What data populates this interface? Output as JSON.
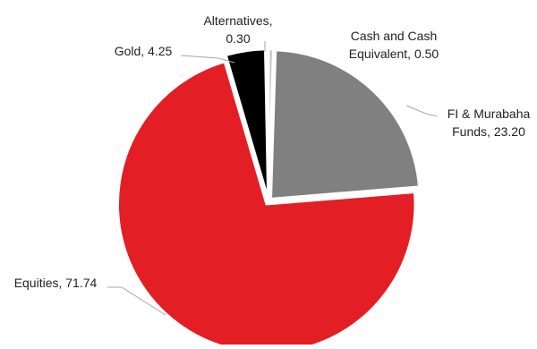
{
  "chart_data": {
    "type": "pie",
    "title": "",
    "slices": [
      {
        "label_lines": [
          "Cash and Cash",
          "Equivalent, 0.50"
        ],
        "name": "Cash and Cash Equivalent",
        "value": 0.5,
        "color": "#c8c8c8"
      },
      {
        "label_lines": [
          "FI & Murabaha",
          "Funds, 23.20"
        ],
        "name": "FI & Murabaha Funds",
        "value": 23.2,
        "color": "#808080"
      },
      {
        "label_lines": [
          "Equities, 71.74"
        ],
        "name": "Equities",
        "value": 71.74,
        "color": "#e31e24"
      },
      {
        "label_lines": [
          "Gold, 4.25"
        ],
        "name": "Gold",
        "value": 4.25,
        "color": "#000000"
      },
      {
        "label_lines": [
          "Alternatives,",
          "0.30"
        ],
        "name": "Alternatives",
        "value": 0.3,
        "color": "#e8e8e8"
      }
    ]
  }
}
